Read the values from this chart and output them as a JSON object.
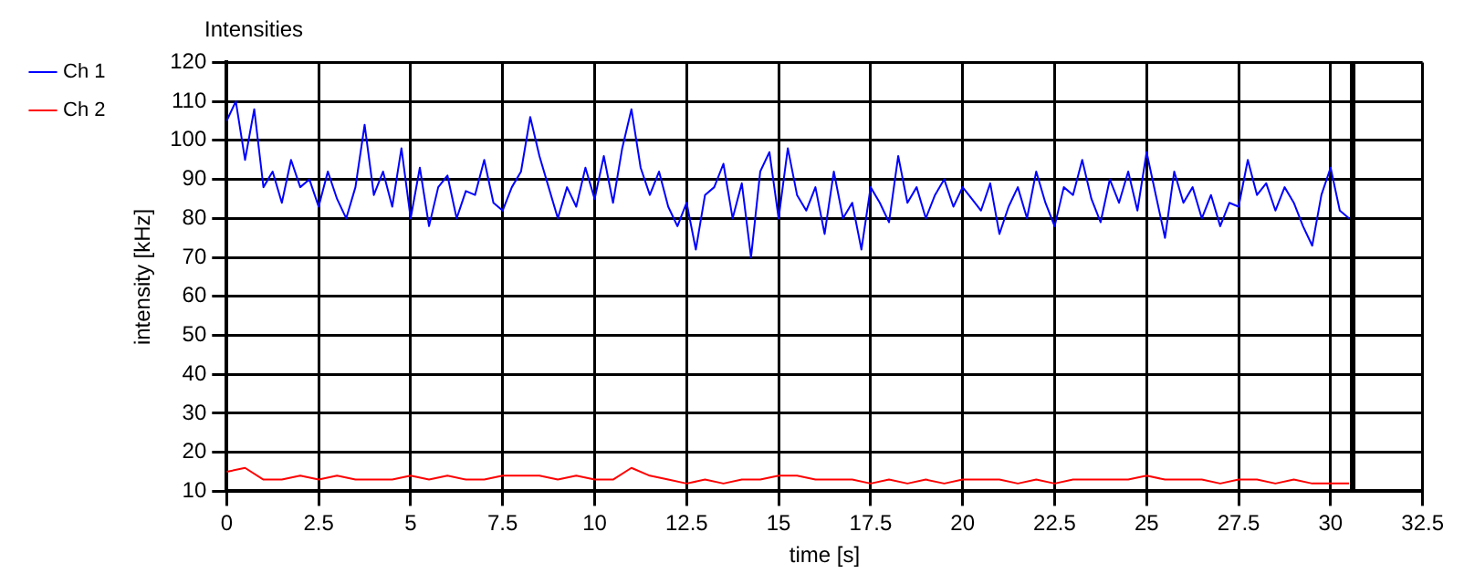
{
  "chart_data": {
    "type": "line",
    "title": "Intensities",
    "xlabel": "time [s]",
    "ylabel": "intensity [kHz]",
    "xlim": [
      0,
      32.5
    ],
    "xticks": [
      0,
      2.5,
      5,
      7.5,
      10,
      12.5,
      15,
      17.5,
      20,
      22.5,
      25,
      27.5,
      30,
      32.5
    ],
    "ylim": [
      10,
      120
    ],
    "yticks": [
      10,
      20,
      30,
      40,
      50,
      60,
      70,
      80,
      90,
      100,
      110,
      120
    ],
    "grid": true,
    "legend": "top left",
    "marker": "none",
    "line_style": "solid",
    "ref_lines": [
      {
        "axis": "x",
        "value": 30.6,
        "color": "#000000"
      }
    ],
    "series": [
      {
        "name": "Ch 1",
        "color": "#0000ff",
        "x": [
          0,
          0.25,
          0.5,
          0.75,
          1,
          1.25,
          1.5,
          1.75,
          2,
          2.25,
          2.5,
          2.75,
          3,
          3.25,
          3.5,
          3.75,
          4,
          4.25,
          4.5,
          4.75,
          5,
          5.25,
          5.5,
          5.75,
          6,
          6.25,
          6.5,
          6.75,
          7,
          7.25,
          7.5,
          7.75,
          8,
          8.25,
          8.5,
          8.75,
          9,
          9.25,
          9.5,
          9.75,
          10,
          10.25,
          10.5,
          10.75,
          11,
          11.25,
          11.5,
          11.75,
          12,
          12.25,
          12.5,
          12.75,
          13,
          13.25,
          13.5,
          13.75,
          14,
          14.25,
          14.5,
          14.75,
          15,
          15.25,
          15.5,
          15.75,
          16,
          16.25,
          16.5,
          16.75,
          17,
          17.25,
          17.5,
          17.75,
          18,
          18.25,
          18.5,
          18.75,
          19,
          19.25,
          19.5,
          19.75,
          20,
          20.25,
          20.5,
          20.75,
          21,
          21.25,
          21.5,
          21.75,
          22,
          22.25,
          22.5,
          22.75,
          23,
          23.25,
          23.5,
          23.75,
          24,
          24.25,
          24.5,
          24.75,
          25,
          25.25,
          25.5,
          25.75,
          26,
          26.25,
          26.5,
          26.75,
          27,
          27.25,
          27.5,
          27.75,
          28,
          28.25,
          28.5,
          28.75,
          29,
          29.25,
          29.5,
          29.75,
          30,
          30.25,
          30.5
        ],
        "values": [
          105,
          110,
          95,
          108,
          88,
          92,
          84,
          95,
          88,
          90,
          83,
          92,
          85,
          80,
          88,
          104,
          86,
          92,
          83,
          98,
          80,
          93,
          78,
          88,
          91,
          80,
          87,
          86,
          95,
          84,
          82,
          88,
          92,
          106,
          96,
          88,
          80,
          88,
          83,
          93,
          85,
          96,
          84,
          98,
          108,
          93,
          86,
          92,
          83,
          78,
          84,
          72,
          86,
          88,
          94,
          80,
          89,
          70,
          92,
          97,
          80,
          98,
          86,
          82,
          88,
          76,
          92,
          80,
          84,
          72,
          88,
          84,
          79,
          96,
          84,
          88,
          80,
          86,
          90,
          83,
          88,
          85,
          82,
          89,
          76,
          83,
          88,
          80,
          92,
          84,
          78,
          88,
          86,
          95,
          85,
          79,
          90,
          84,
          92,
          82,
          97,
          86,
          75,
          92,
          84,
          88,
          80,
          86,
          78,
          84,
          83,
          95,
          86,
          89,
          82,
          88,
          84,
          78,
          73,
          86,
          93,
          82,
          80
        ]
      },
      {
        "name": "Ch 2",
        "color": "#ff0000",
        "x": [
          0,
          0.5,
          1,
          1.5,
          2,
          2.5,
          3,
          3.5,
          4,
          4.5,
          5,
          5.5,
          6,
          6.5,
          7,
          7.5,
          8,
          8.5,
          9,
          9.5,
          10,
          10.5,
          11,
          11.5,
          12,
          12.5,
          13,
          13.5,
          14,
          14.5,
          15,
          15.5,
          16,
          16.5,
          17,
          17.5,
          18,
          18.5,
          19,
          19.5,
          20,
          20.5,
          21,
          21.5,
          22,
          22.5,
          23,
          23.5,
          24,
          24.5,
          25,
          25.5,
          26,
          26.5,
          27,
          27.5,
          28,
          28.5,
          29,
          29.5,
          30,
          30.5
        ],
        "values": [
          15,
          16,
          13,
          13,
          14,
          13,
          14,
          13,
          13,
          13,
          14,
          13,
          14,
          13,
          13,
          14,
          14,
          14,
          13,
          14,
          13,
          13,
          16,
          14,
          13,
          12,
          13,
          12,
          13,
          13,
          14,
          14,
          13,
          13,
          13,
          12,
          13,
          12,
          13,
          12,
          13,
          13,
          13,
          12,
          13,
          12,
          13,
          13,
          13,
          13,
          14,
          13,
          13,
          13,
          12,
          13,
          13,
          12,
          13,
          12,
          12,
          12
        ]
      }
    ]
  }
}
